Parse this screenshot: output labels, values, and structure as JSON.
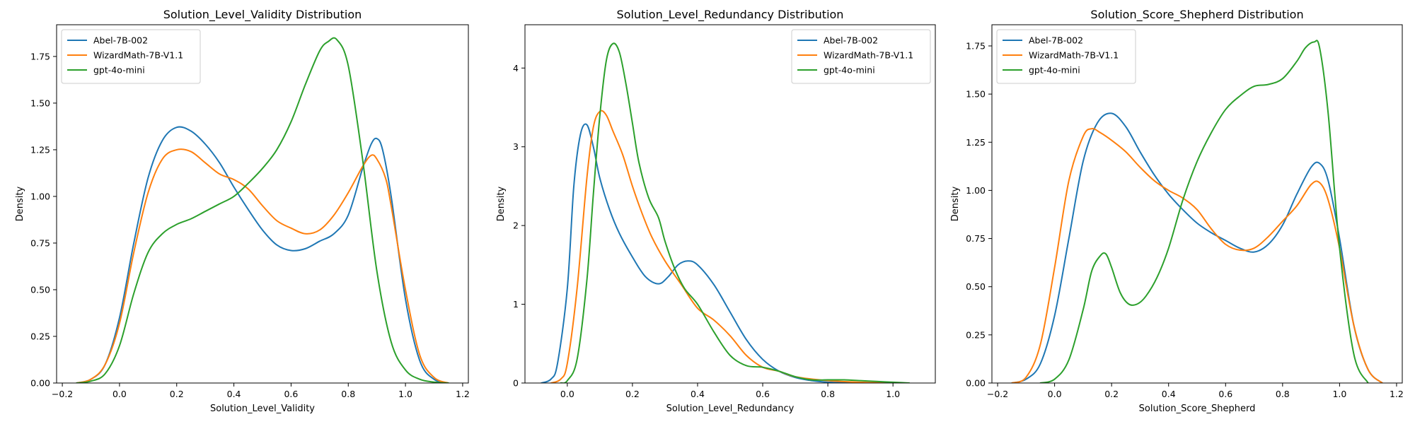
{
  "colors": {
    "Abel-7B-002": "#1f77b4",
    "WizardMath-7B-V1.1": "#ff7f0e",
    "gpt-4o-mini": "#2ca02c"
  },
  "chart_data": [
    {
      "type": "line",
      "title": "Solution_Level_Validity Distribution",
      "xlabel": "Solution_Level_Validity",
      "ylabel": "Density",
      "xlim": [
        -0.22,
        1.22
      ],
      "ylim": [
        0,
        1.92
      ],
      "xticks": [
        -0.2,
        0.0,
        0.2,
        0.4,
        0.6,
        0.8,
        1.0,
        1.2
      ],
      "xtick_labels": [
        "−0.2",
        "0.0",
        "0.2",
        "0.4",
        "0.6",
        "0.8",
        "1.0",
        "1.2"
      ],
      "yticks": [
        0.0,
        0.25,
        0.5,
        0.75,
        1.0,
        1.25,
        1.5,
        1.75
      ],
      "ytick_labels": [
        "0.00",
        "0.25",
        "0.50",
        "0.75",
        "1.00",
        "1.25",
        "1.50",
        "1.75"
      ],
      "grid": false,
      "legend_position": "top-left",
      "series": [
        {
          "name": "Abel-7B-002",
          "x": [
            -0.15,
            -0.1,
            -0.05,
            0.0,
            0.05,
            0.1,
            0.15,
            0.2,
            0.25,
            0.3,
            0.35,
            0.4,
            0.45,
            0.5,
            0.55,
            0.6,
            0.65,
            0.7,
            0.75,
            0.8,
            0.85,
            0.88,
            0.9,
            0.92,
            0.95,
            1.0,
            1.05,
            1.1,
            1.15
          ],
          "y": [
            0.0,
            0.02,
            0.1,
            0.35,
            0.75,
            1.1,
            1.3,
            1.37,
            1.35,
            1.28,
            1.18,
            1.05,
            0.93,
            0.82,
            0.74,
            0.71,
            0.72,
            0.76,
            0.8,
            0.9,
            1.15,
            1.28,
            1.31,
            1.25,
            1.0,
            0.45,
            0.12,
            0.02,
            0.0
          ]
        },
        {
          "name": "WizardMath-7B-V1.1",
          "x": [
            -0.15,
            -0.1,
            -0.05,
            0.0,
            0.05,
            0.1,
            0.15,
            0.2,
            0.25,
            0.3,
            0.35,
            0.4,
            0.45,
            0.5,
            0.55,
            0.6,
            0.65,
            0.7,
            0.75,
            0.8,
            0.85,
            0.88,
            0.9,
            0.93,
            0.95,
            1.0,
            1.05,
            1.1,
            1.15
          ],
          "y": [
            0.0,
            0.02,
            0.1,
            0.32,
            0.7,
            1.02,
            1.2,
            1.25,
            1.24,
            1.18,
            1.12,
            1.09,
            1.04,
            0.95,
            0.87,
            0.83,
            0.8,
            0.82,
            0.9,
            1.02,
            1.16,
            1.22,
            1.2,
            1.1,
            0.95,
            0.5,
            0.15,
            0.03,
            0.0
          ]
        },
        {
          "name": "gpt-4o-mini",
          "x": [
            -0.15,
            -0.1,
            -0.05,
            0.0,
            0.05,
            0.1,
            0.15,
            0.2,
            0.25,
            0.3,
            0.35,
            0.4,
            0.45,
            0.5,
            0.55,
            0.6,
            0.65,
            0.7,
            0.73,
            0.76,
            0.8,
            0.85,
            0.9,
            0.95,
            1.0,
            1.05,
            1.1,
            1.15
          ],
          "y": [
            0.0,
            0.01,
            0.05,
            0.2,
            0.48,
            0.7,
            0.8,
            0.85,
            0.88,
            0.92,
            0.96,
            1.0,
            1.07,
            1.15,
            1.25,
            1.4,
            1.6,
            1.78,
            1.83,
            1.84,
            1.7,
            1.2,
            0.6,
            0.22,
            0.07,
            0.02,
            0.005,
            0.0
          ]
        }
      ]
    },
    {
      "type": "line",
      "title": "Solution_Level_Redundancy Distribution",
      "xlabel": "Solution_Level_Redundancy",
      "ylabel": "Density",
      "xlim": [
        -0.13,
        1.13
      ],
      "ylim": [
        0,
        4.55
      ],
      "xticks": [
        0.0,
        0.2,
        0.4,
        0.6,
        0.8,
        1.0
      ],
      "xtick_labels": [
        "0.0",
        "0.2",
        "0.4",
        "0.6",
        "0.8",
        "1.0"
      ],
      "yticks": [
        0,
        1,
        2,
        3,
        4
      ],
      "ytick_labels": [
        "0",
        "1",
        "2",
        "3",
        "4"
      ],
      "grid": false,
      "legend_position": "top-right",
      "series": [
        {
          "name": "Abel-7B-002",
          "x": [
            -0.08,
            -0.05,
            -0.03,
            0.0,
            0.02,
            0.04,
            0.06,
            0.08,
            0.1,
            0.13,
            0.16,
            0.2,
            0.24,
            0.28,
            0.31,
            0.34,
            0.37,
            0.4,
            0.45,
            0.5,
            0.55,
            0.6,
            0.65,
            0.7,
            0.75,
            0.8,
            0.85,
            0.9
          ],
          "y": [
            0.0,
            0.05,
            0.25,
            1.2,
            2.5,
            3.15,
            3.28,
            3.0,
            2.6,
            2.2,
            1.9,
            1.6,
            1.35,
            1.26,
            1.35,
            1.5,
            1.55,
            1.5,
            1.25,
            0.9,
            0.55,
            0.3,
            0.15,
            0.07,
            0.03,
            0.01,
            0.005,
            0.0
          ]
        },
        {
          "name": "WizardMath-7B-V1.1",
          "x": [
            -0.05,
            -0.02,
            0.0,
            0.03,
            0.06,
            0.08,
            0.1,
            0.12,
            0.14,
            0.17,
            0.2,
            0.23,
            0.26,
            0.3,
            0.35,
            0.4,
            0.45,
            0.5,
            0.55,
            0.6,
            0.65,
            0.7,
            0.8,
            0.9,
            1.0
          ],
          "y": [
            0.0,
            0.05,
            0.25,
            1.2,
            2.6,
            3.25,
            3.45,
            3.4,
            3.2,
            2.9,
            2.5,
            2.15,
            1.85,
            1.55,
            1.25,
            0.95,
            0.8,
            0.6,
            0.35,
            0.2,
            0.15,
            0.08,
            0.03,
            0.01,
            0.0
          ]
        },
        {
          "name": "gpt-4o-mini",
          "x": [
            -0.02,
            0.0,
            0.03,
            0.06,
            0.08,
            0.1,
            0.12,
            0.14,
            0.16,
            0.18,
            0.2,
            0.22,
            0.25,
            0.28,
            0.3,
            0.33,
            0.36,
            0.4,
            0.45,
            0.5,
            0.55,
            0.6,
            0.65,
            0.7,
            0.75,
            0.8,
            0.85,
            0.9,
            0.95,
            1.0,
            1.05
          ],
          "y": [
            0.0,
            0.03,
            0.3,
            1.3,
            2.4,
            3.4,
            4.1,
            4.31,
            4.2,
            3.8,
            3.3,
            2.8,
            2.35,
            2.1,
            1.8,
            1.45,
            1.2,
            1.0,
            0.65,
            0.35,
            0.22,
            0.2,
            0.15,
            0.08,
            0.04,
            0.04,
            0.04,
            0.03,
            0.02,
            0.01,
            0.0
          ]
        }
      ]
    },
    {
      "type": "line",
      "title": "Solution_Score_Shepherd Distribution",
      "xlabel": "Solution_Score_Shepherd",
      "ylabel": "Density",
      "xlim": [
        -0.22,
        1.22
      ],
      "ylim": [
        0,
        1.86
      ],
      "xticks": [
        -0.2,
        0.0,
        0.2,
        0.4,
        0.6,
        0.8,
        1.0,
        1.2
      ],
      "xtick_labels": [
        "−0.2",
        "0.0",
        "0.2",
        "0.4",
        "0.6",
        "0.8",
        "1.0",
        "1.2"
      ],
      "yticks": [
        0.0,
        0.25,
        0.5,
        0.75,
        1.0,
        1.25,
        1.5,
        1.75
      ],
      "ytick_labels": [
        "0.00",
        "0.25",
        "0.50",
        "0.75",
        "1.00",
        "1.25",
        "1.50",
        "1.75"
      ],
      "grid": false,
      "legend_position": "top-left",
      "series": [
        {
          "name": "Abel-7B-002",
          "x": [
            -0.15,
            -0.1,
            -0.05,
            0.0,
            0.05,
            0.1,
            0.15,
            0.2,
            0.25,
            0.3,
            0.35,
            0.4,
            0.45,
            0.5,
            0.55,
            0.6,
            0.65,
            0.7,
            0.75,
            0.8,
            0.85,
            0.9,
            0.93,
            0.96,
            1.0,
            1.05,
            1.1,
            1.15
          ],
          "y": [
            0.0,
            0.02,
            0.1,
            0.35,
            0.75,
            1.15,
            1.35,
            1.4,
            1.33,
            1.2,
            1.08,
            0.98,
            0.9,
            0.83,
            0.78,
            0.74,
            0.7,
            0.68,
            0.72,
            0.82,
            0.98,
            1.12,
            1.14,
            1.05,
            0.75,
            0.3,
            0.07,
            0.0
          ]
        },
        {
          "name": "WizardMath-7B-V1.1",
          "x": [
            -0.15,
            -0.1,
            -0.05,
            0.0,
            0.05,
            0.1,
            0.13,
            0.16,
            0.2,
            0.25,
            0.3,
            0.35,
            0.4,
            0.45,
            0.5,
            0.55,
            0.6,
            0.65,
            0.7,
            0.75,
            0.8,
            0.85,
            0.9,
            0.93,
            0.96,
            1.0,
            1.05,
            1.1,
            1.15
          ],
          "y": [
            0.0,
            0.03,
            0.2,
            0.6,
            1.05,
            1.28,
            1.32,
            1.3,
            1.26,
            1.2,
            1.12,
            1.05,
            1.0,
            0.96,
            0.9,
            0.8,
            0.72,
            0.69,
            0.7,
            0.76,
            0.84,
            0.92,
            1.03,
            1.04,
            0.95,
            0.7,
            0.3,
            0.07,
            0.0
          ]
        },
        {
          "name": "gpt-4o-mini",
          "x": [
            -0.05,
            0.0,
            0.05,
            0.1,
            0.13,
            0.16,
            0.18,
            0.2,
            0.23,
            0.26,
            0.29,
            0.32,
            0.36,
            0.4,
            0.45,
            0.5,
            0.55,
            0.6,
            0.65,
            0.7,
            0.75,
            0.8,
            0.85,
            0.88,
            0.91,
            0.93,
            0.96,
            1.0,
            1.05,
            1.1
          ],
          "y": [
            0.0,
            0.02,
            0.12,
            0.38,
            0.58,
            0.66,
            0.67,
            0.6,
            0.47,
            0.41,
            0.41,
            0.45,
            0.55,
            0.7,
            0.95,
            1.15,
            1.3,
            1.42,
            1.49,
            1.54,
            1.55,
            1.58,
            1.67,
            1.74,
            1.77,
            1.74,
            1.4,
            0.7,
            0.15,
            0.0
          ]
        }
      ]
    }
  ]
}
